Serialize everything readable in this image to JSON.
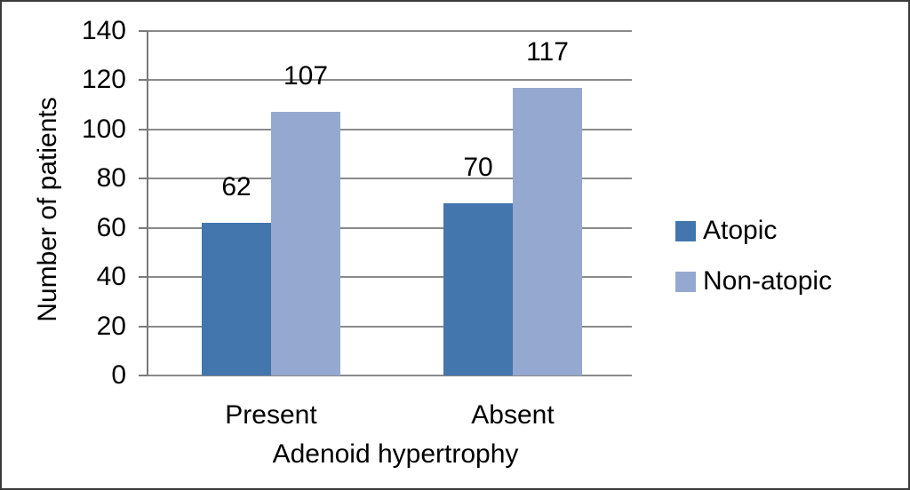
{
  "chart_data": {
    "type": "bar",
    "title": "",
    "categories": [
      "Present",
      "Absent"
    ],
    "series": [
      {
        "name": "Atopic",
        "color": "#4376ad",
        "values": [
          62,
          70
        ]
      },
      {
        "name": "Non-atopic",
        "color": "#95a8d0",
        "values": [
          107,
          117
        ]
      }
    ],
    "xlabel": "Adenoid hypertrophy",
    "ylabel": "Number of patients",
    "ylim": [
      0,
      140
    ],
    "yticks": [
      0,
      20,
      40,
      60,
      80,
      100,
      120,
      140
    ],
    "grid": "horizontal",
    "legend_position": "right",
    "show_data_labels": true
  },
  "style": {
    "background": "#ffffff",
    "border_color": "#3a3a3a",
    "grid_color": "#8a8a8a",
    "axis_color": "#7a7a7a",
    "text_color": "#000000"
  }
}
